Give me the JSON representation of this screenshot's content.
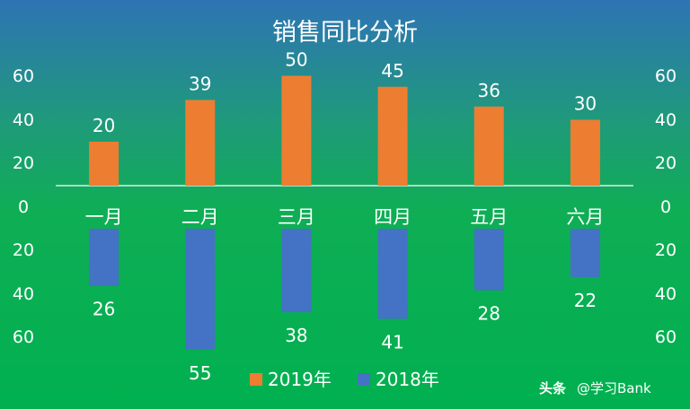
{
  "chart_data": {
    "type": "bar",
    "title": "销售同比分析",
    "categories": [
      "一月",
      "二月",
      "三月",
      "四月",
      "五月",
      "六月"
    ],
    "series": [
      {
        "name": "2019年",
        "color": "#ed7d31",
        "values": [
          20,
          39,
          50,
          45,
          36,
          30
        ]
      },
      {
        "name": "2018年",
        "color": "#4472c4",
        "values": [
          26,
          55,
          38,
          41,
          28,
          22
        ]
      }
    ],
    "y_ticks_upper": [
      "60",
      "40",
      "20",
      "0"
    ],
    "y_ticks_lower": [
      "20",
      "40",
      "60"
    ],
    "ylim": [
      0,
      60
    ],
    "grid": false,
    "legend_position": "bottom"
  },
  "watermark": {
    "brand": "头条",
    "text": "@学习Bank"
  }
}
